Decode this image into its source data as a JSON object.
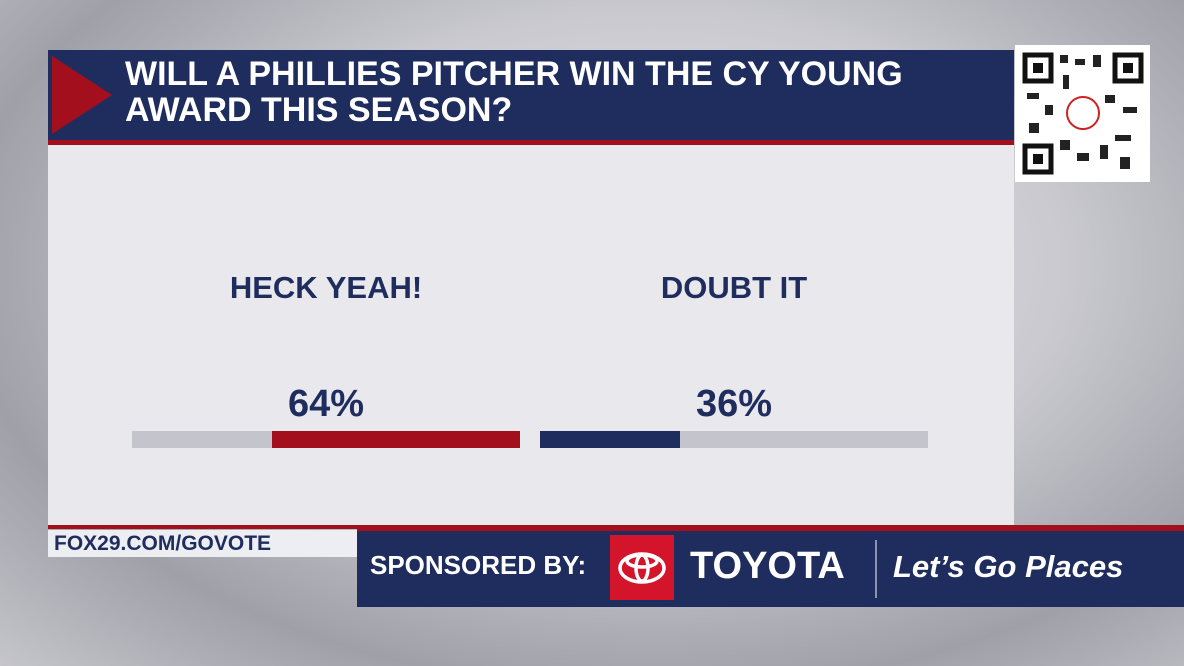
{
  "chart_data": {
    "type": "bar",
    "title": "WILL A PHILLIES PITCHER WIN THE CY YOUNG AWARD THIS SEASON?",
    "categories": [
      "HECK YEAH!",
      "DOUBT IT"
    ],
    "values": [
      64,
      36
    ],
    "value_labels": [
      "64%",
      "36%"
    ],
    "colors": [
      "#a30f1c",
      "#1f2d5e"
    ],
    "xlim": [
      0,
      100
    ]
  },
  "footer": {
    "url": "FOX29.COM/GOVOTE",
    "sponsor_label": "SPONSORED BY:",
    "sponsor": "TOYOTA",
    "slogan": "Let’s Go Places"
  }
}
